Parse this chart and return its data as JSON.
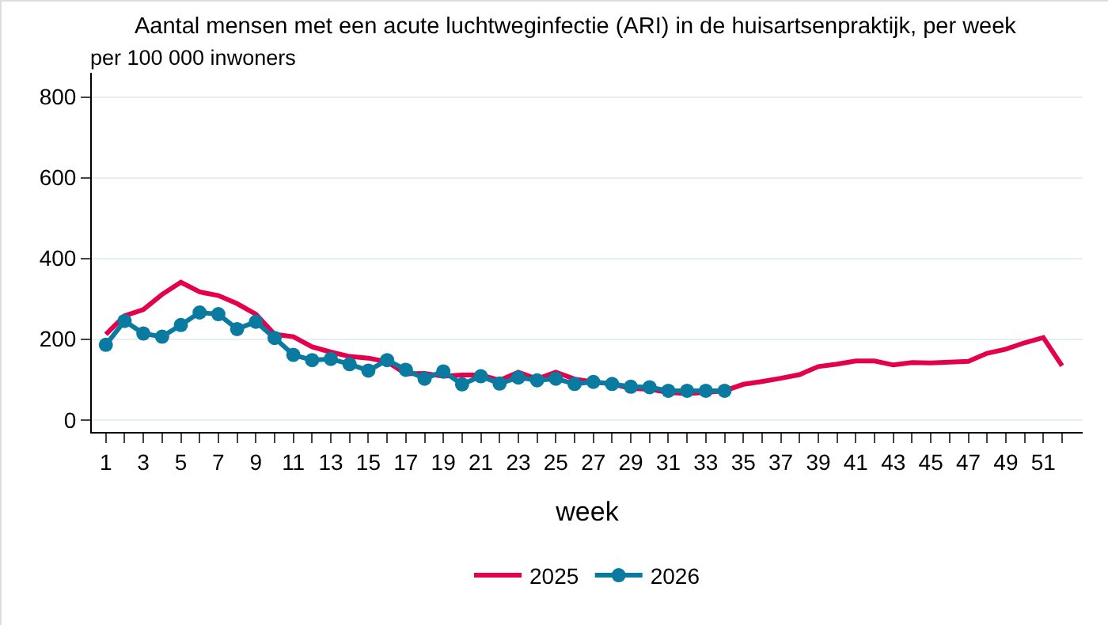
{
  "chart_data": {
    "type": "line",
    "title": "Aantal mensen met een acute luchtweginfectie (ARI) in de huisartsenpraktijk, per week",
    "ylabel": "per 100 000 inwoners",
    "xlabel": "week",
    "x": [
      1,
      2,
      3,
      4,
      5,
      6,
      7,
      8,
      9,
      10,
      11,
      12,
      13,
      14,
      15,
      16,
      17,
      18,
      19,
      20,
      21,
      22,
      23,
      24,
      25,
      26,
      27,
      28,
      29,
      30,
      31,
      32,
      33,
      34,
      35,
      36,
      37,
      38,
      39,
      40,
      41,
      42,
      43,
      44,
      45,
      46,
      47,
      48,
      49,
      50,
      51,
      52
    ],
    "series": [
      {
        "name": "2025",
        "color": "#e5004b",
        "marker": "none",
        "values": [
          212,
          258,
          273,
          311,
          341,
          317,
          308,
          288,
          262,
          212,
          206,
          181,
          168,
          157,
          153,
          144,
          114,
          115,
          108,
          111,
          111,
          98,
          118,
          101,
          118,
          101,
          94,
          89,
          78,
          76,
          68,
          65,
          68,
          72,
          88,
          95,
          103,
          112,
          132,
          138,
          146,
          146,
          136,
          142,
          141,
          143,
          145,
          165,
          175,
          191,
          204,
          134
        ]
      },
      {
        "name": "2026",
        "color": "#0a7aa0",
        "marker": "circle",
        "values": [
          186,
          245,
          214,
          206,
          235,
          266,
          262,
          225,
          243,
          203,
          161,
          148,
          151,
          138,
          122,
          148,
          124,
          102,
          120,
          88,
          108,
          90,
          105,
          98,
          102,
          89,
          94,
          89,
          82,
          81,
          72,
          72,
          72,
          72,
          null,
          null,
          null,
          null,
          null,
          null,
          null,
          null,
          null,
          null,
          null,
          null,
          null,
          null,
          null,
          null,
          null,
          null
        ]
      }
    ],
    "xlim": [
      0.25,
      53.1
    ],
    "xticks": [
      1,
      {
        "value": 2,
        "label": null
      },
      3,
      {
        "value": 4,
        "label": null
      },
      5,
      {
        "value": 6,
        "label": null
      },
      7,
      {
        "value": 8,
        "label": null
      },
      9,
      {
        "value": 10,
        "label": null
      },
      11,
      {
        "value": 12,
        "label": null
      },
      13,
      {
        "value": 14,
        "label": null
      },
      15,
      {
        "value": 16,
        "label": null
      },
      17,
      {
        "value": 18,
        "label": null
      },
      19,
      {
        "value": 20,
        "label": null
      },
      21,
      {
        "value": 22,
        "label": null
      },
      23,
      {
        "value": 24,
        "label": null
      },
      25,
      {
        "value": 26,
        "label": null
      },
      27,
      {
        "value": 28,
        "label": null
      },
      29,
      {
        "value": 30,
        "label": null
      },
      31,
      {
        "value": 32,
        "label": null
      },
      33,
      {
        "value": 34,
        "label": null
      },
      35,
      {
        "value": 36,
        "label": null
      },
      37,
      {
        "value": 38,
        "label": null
      },
      39,
      {
        "value": 40,
        "label": null
      },
      41,
      {
        "value": 42,
        "label": null
      },
      43,
      {
        "value": 44,
        "label": null
      },
      45,
      {
        "value": 46,
        "label": null
      },
      47,
      {
        "value": 48,
        "label": null
      },
      49,
      {
        "value": 50,
        "label": null
      },
      51,
      {
        "value": 52,
        "label": null
      }
    ],
    "ylim": [
      -30,
      860
    ],
    "yticks": [
      0,
      200,
      400,
      600,
      800
    ],
    "grid": "y",
    "legend": "bottom",
    "line_style": "solid"
  }
}
